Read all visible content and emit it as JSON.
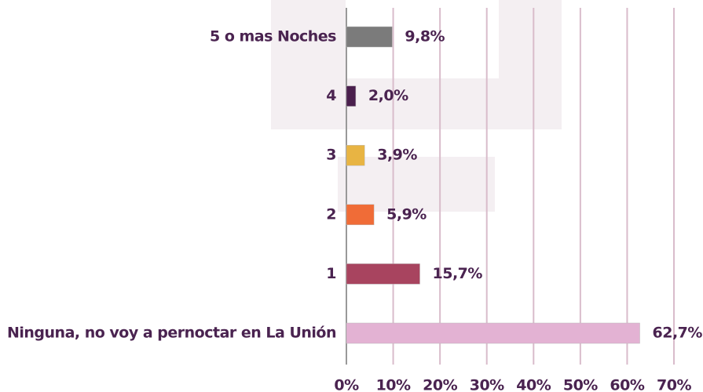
{
  "chart_data": {
    "type": "bar",
    "orientation": "horizontal",
    "categories": [
      "5 o mas Noches",
      "4",
      "3",
      "2",
      "1",
      "Ninguna, no voy a pernoctar en La Unión"
    ],
    "values": [
      9.8,
      2.0,
      3.9,
      5.9,
      15.7,
      62.7
    ],
    "value_labels": [
      "9,8%",
      "2,0%",
      "3,9%",
      "5,9%",
      "15,7%",
      "62,7%"
    ],
    "colors": [
      "#7b7b7b",
      "#4a1f4d",
      "#e8b443",
      "#f06c37",
      "#a8445f",
      "#e3b2d3"
    ],
    "xlim": [
      0,
      70
    ],
    "xticks": [
      {
        "value": 0,
        "label": "0%"
      },
      {
        "value": 10,
        "label": "10%"
      },
      {
        "value": 20,
        "label": "20%"
      },
      {
        "value": 30,
        "label": "30%"
      },
      {
        "value": 40,
        "label": "40%"
      },
      {
        "value": 50,
        "label": "50%"
      },
      {
        "value": 60,
        "label": "60%"
      },
      {
        "value": 70,
        "label": "70%"
      }
    ],
    "grid": true
  }
}
